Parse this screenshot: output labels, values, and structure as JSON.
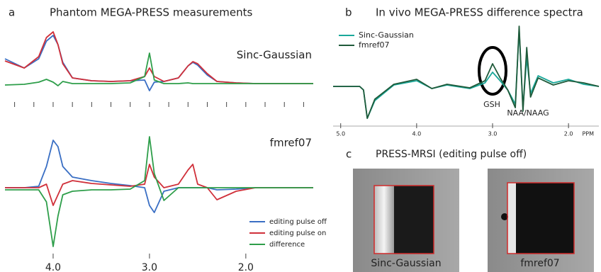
{
  "figure": {
    "panels": [
      {
        "letter": "a",
        "title": "Phantom MEGA-PRESS measurements"
      },
      {
        "letter": "b",
        "title": "In vivo MEGA-PRESS difference spectra"
      },
      {
        "letter": "c",
        "title": "PRESS-MRSI (editing pulse off)",
        "images": [
          "Sinc-Gaussian",
          "fmref07"
        ]
      }
    ]
  },
  "chart_data": [
    {
      "type": "line",
      "title": "Sinc-Gaussian",
      "x": [
        4.5,
        4.3,
        4.15,
        4.07,
        4.0,
        3.95,
        3.9,
        3.8,
        3.6,
        3.4,
        3.2,
        3.05,
        3.0,
        2.95,
        2.85,
        2.7,
        2.6,
        2.55,
        2.5,
        2.4,
        2.3,
        2.1,
        1.9,
        1.6,
        1.3
      ],
      "series": [
        {
          "color": "#3a6fc4",
          "values": [
            35,
            22,
            35,
            60,
            68,
            55,
            30,
            8,
            4,
            3,
            4,
            5,
            -10,
            2,
            3,
            8,
            25,
            30,
            26,
            12,
            3,
            1,
            0,
            0,
            0
          ]
        },
        {
          "color": "#d0303a",
          "values": [
            32,
            22,
            38,
            65,
            73,
            55,
            28,
            8,
            4,
            3,
            4,
            10,
            22,
            10,
            3,
            8,
            25,
            31,
            28,
            14,
            3,
            1,
            0,
            0,
            0
          ]
        },
        {
          "color": "#2e9e4a",
          "values": [
            -2,
            -1,
            2,
            6,
            2,
            -3,
            3,
            0,
            0,
            0,
            1,
            10,
            43,
            5,
            0,
            0,
            1,
            0,
            0,
            0,
            0,
            0,
            0,
            0,
            0
          ]
        }
      ],
      "xlim": [
        4.5,
        1.3
      ],
      "ylim": [
        -20,
        100
      ],
      "xticks": [
        4.4,
        4.2,
        4.0,
        3.8,
        3.6,
        3.4,
        3.2,
        3.0,
        2.8,
        2.6,
        2.4,
        2.2,
        2.0,
        1.8,
        1.6,
        1.4
      ],
      "xtick_labels": false
    },
    {
      "type": "line",
      "title": "fmref07",
      "x": [
        4.5,
        4.3,
        4.15,
        4.07,
        4.0,
        3.95,
        3.9,
        3.8,
        3.6,
        3.4,
        3.2,
        3.05,
        3.0,
        2.95,
        2.85,
        2.7,
        2.6,
        2.55,
        2.5,
        2.4,
        2.3,
        2.1,
        1.9,
        1.6,
        1.3
      ],
      "series": [
        {
          "name": "editing pulse off",
          "color": "#3a6fc4",
          "values": [
            0,
            0,
            2,
            30,
            67,
            58,
            30,
            15,
            10,
            6,
            3,
            0,
            -25,
            -35,
            -5,
            0,
            0,
            0,
            0,
            0,
            -3,
            -2,
            0,
            0,
            0
          ]
        },
        {
          "name": "editing pulse on",
          "color": "#d0303a",
          "values": [
            0,
            0,
            0,
            5,
            -25,
            -10,
            5,
            10,
            6,
            4,
            2,
            5,
            33,
            15,
            0,
            5,
            25,
            33,
            5,
            0,
            -17,
            -5,
            0,
            0,
            0
          ]
        },
        {
          "name": "difference",
          "color": "#2e9e4a",
          "values": [
            -3,
            -3,
            -3,
            -20,
            -83,
            -40,
            -10,
            -5,
            -3,
            -3,
            -2,
            10,
            72,
            20,
            -18,
            0,
            0,
            0,
            0,
            0,
            0,
            0,
            0,
            0,
            0
          ]
        }
      ],
      "xlim": [
        4.5,
        1.3
      ],
      "ylim": [
        -90,
        85
      ],
      "xticks": [
        {
          "value": 4,
          "label": "4.0"
        },
        {
          "value": 3,
          "label": "3.0"
        },
        {
          "value": 2,
          "label": "2.0"
        }
      ]
    },
    {
      "type": "line",
      "x_label": "PPM",
      "x": [
        5.1,
        4.9,
        4.75,
        4.7,
        4.65,
        4.55,
        4.3,
        4.0,
        3.8,
        3.6,
        3.3,
        3.1,
        3.0,
        2.9,
        2.8,
        2.7,
        2.65,
        2.6,
        2.55,
        2.5,
        2.4,
        2.2,
        2.0,
        1.8,
        1.6
      ],
      "series": [
        {
          "name": "Sinc-Gaussian",
          "color": "#1aa89a",
          "values": [
            0,
            0,
            0,
            -5,
            -45,
            -20,
            2,
            8,
            -3,
            2,
            -3,
            5,
            20,
            8,
            -5,
            -25,
            80,
            -30,
            40,
            -10,
            15,
            5,
            10,
            3,
            0
          ]
        },
        {
          "name": "fmref07",
          "color": "#1f5a3a",
          "values": [
            0,
            0,
            0,
            -5,
            -45,
            -18,
            3,
            10,
            -3,
            3,
            -2,
            8,
            32,
            12,
            -5,
            -30,
            85,
            -35,
            55,
            -15,
            12,
            2,
            8,
            5,
            0
          ]
        }
      ],
      "xlim": [
        5.1,
        1.6
      ],
      "ylim": [
        -50,
        95
      ],
      "xticks": [
        {
          "value": 5,
          "label": "5.0"
        },
        {
          "value": 4,
          "label": "4.0"
        },
        {
          "value": 3,
          "label": "3.0"
        },
        {
          "value": 2,
          "label": "2.0"
        }
      ],
      "annotations": [
        "GSH",
        "NAA/NAAG"
      ]
    }
  ]
}
